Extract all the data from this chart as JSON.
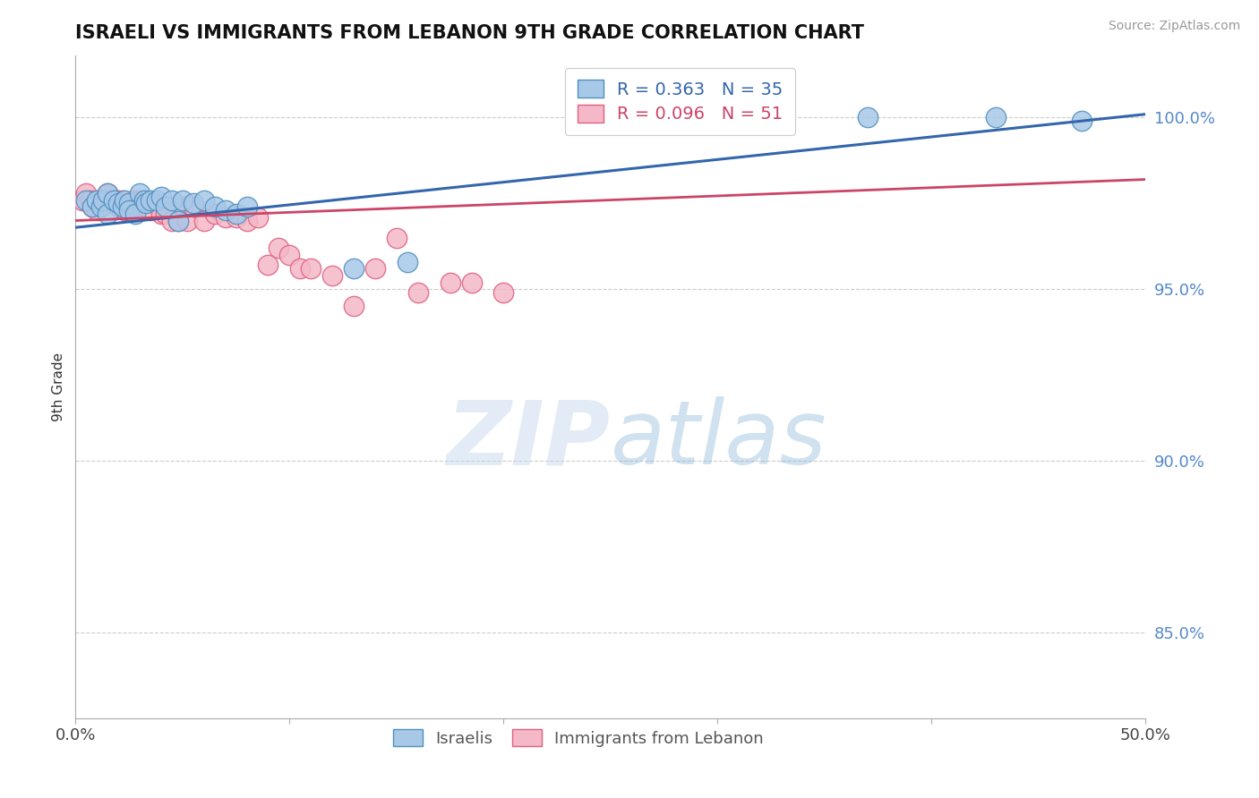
{
  "title": "ISRAELI VS IMMIGRANTS FROM LEBANON 9TH GRADE CORRELATION CHART",
  "source": "Source: ZipAtlas.com",
  "ylabel": "9th Grade",
  "ytick_labels": [
    "85.0%",
    "90.0%",
    "95.0%",
    "100.0%"
  ],
  "ytick_values": [
    0.85,
    0.9,
    0.95,
    1.0
  ],
  "xlim": [
    0.0,
    0.5
  ],
  "ylim": [
    0.825,
    1.018
  ],
  "blue_R": 0.363,
  "blue_N": 35,
  "pink_R": 0.096,
  "pink_N": 51,
  "blue_color": "#a8c8e8",
  "pink_color": "#f4b8c8",
  "blue_edge_color": "#5090c0",
  "pink_edge_color": "#e06080",
  "blue_line_color": "#3366aa",
  "pink_line_color": "#cc4466",
  "legend_label_blue": "Israelis",
  "legend_label_pink": "Immigrants from Lebanon",
  "watermark_zip": "ZIP",
  "watermark_atlas": "atlas",
  "blue_scatter_x": [
    0.005,
    0.008,
    0.01,
    0.012,
    0.013,
    0.015,
    0.015,
    0.018,
    0.02,
    0.022,
    0.023,
    0.025,
    0.025,
    0.028,
    0.03,
    0.032,
    0.033,
    0.035,
    0.038,
    0.04,
    0.042,
    0.045,
    0.048,
    0.05,
    0.055,
    0.06,
    0.065,
    0.07,
    0.075,
    0.08,
    0.13,
    0.155,
    0.37,
    0.43,
    0.47
  ],
  "blue_scatter_y": [
    0.976,
    0.974,
    0.976,
    0.974,
    0.976,
    0.978,
    0.972,
    0.976,
    0.975,
    0.974,
    0.976,
    0.975,
    0.973,
    0.972,
    0.978,
    0.976,
    0.975,
    0.976,
    0.976,
    0.977,
    0.974,
    0.976,
    0.97,
    0.976,
    0.975,
    0.976,
    0.974,
    0.973,
    0.972,
    0.974,
    0.956,
    0.958,
    1.0,
    1.0,
    0.999
  ],
  "pink_scatter_x": [
    0.003,
    0.005,
    0.007,
    0.008,
    0.01,
    0.01,
    0.012,
    0.013,
    0.015,
    0.015,
    0.017,
    0.018,
    0.02,
    0.02,
    0.022,
    0.023,
    0.025,
    0.025,
    0.027,
    0.028,
    0.03,
    0.032,
    0.033,
    0.035,
    0.038,
    0.04,
    0.042,
    0.045,
    0.048,
    0.05,
    0.052,
    0.055,
    0.06,
    0.065,
    0.07,
    0.075,
    0.08,
    0.085,
    0.09,
    0.095,
    0.1,
    0.105,
    0.11,
    0.12,
    0.13,
    0.14,
    0.15,
    0.16,
    0.175,
    0.185,
    0.2
  ],
  "pink_scatter_y": [
    0.976,
    0.978,
    0.976,
    0.974,
    0.976,
    0.973,
    0.975,
    0.976,
    0.978,
    0.975,
    0.976,
    0.975,
    0.974,
    0.976,
    0.976,
    0.973,
    0.975,
    0.975,
    0.976,
    0.974,
    0.976,
    0.975,
    0.975,
    0.973,
    0.975,
    0.972,
    0.972,
    0.97,
    0.97,
    0.974,
    0.97,
    0.974,
    0.97,
    0.972,
    0.971,
    0.971,
    0.97,
    0.971,
    0.957,
    0.962,
    0.96,
    0.956,
    0.956,
    0.954,
    0.945,
    0.956,
    0.965,
    0.949,
    0.952,
    0.952,
    0.949
  ],
  "blue_trend_x": [
    0.0,
    0.5
  ],
  "blue_trend_y": [
    0.968,
    1.001
  ],
  "pink_trend_x": [
    0.0,
    0.5
  ],
  "pink_trend_y": [
    0.97,
    0.982
  ]
}
